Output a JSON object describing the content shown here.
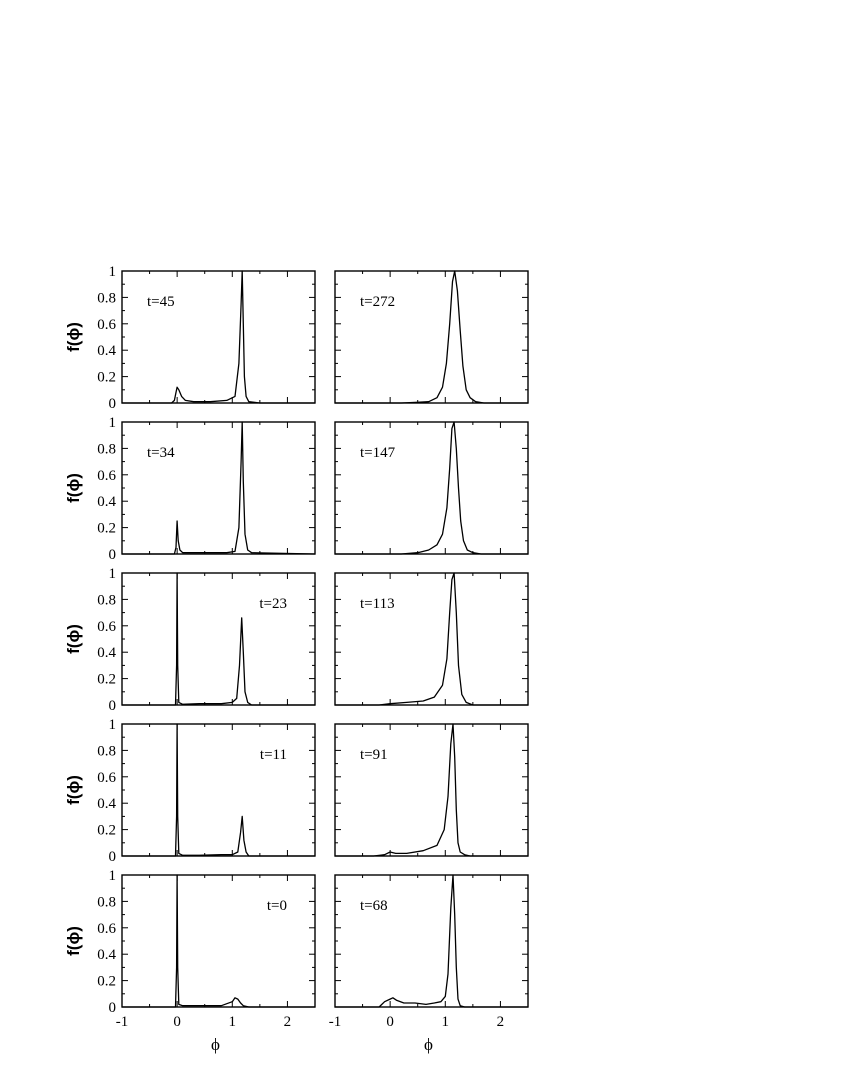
{
  "chart_data": [
    {
      "type": "line",
      "panel_label": "t=45",
      "ylabel": "f(ϕ)",
      "xlabel": "",
      "xlim": [
        -1,
        2.5
      ],
      "ylim": [
        0,
        1
      ],
      "x": [
        -1.0,
        -0.1,
        -0.05,
        -0.02,
        0.0,
        0.03,
        0.08,
        0.15,
        0.3,
        0.6,
        0.9,
        1.05,
        1.12,
        1.16,
        1.18,
        1.2,
        1.22,
        1.25,
        1.3,
        1.5,
        2.5
      ],
      "y": [
        0,
        0,
        0.02,
        0.08,
        0.12,
        0.1,
        0.05,
        0.02,
        0.01,
        0.01,
        0.02,
        0.05,
        0.3,
        0.75,
        1.0,
        0.6,
        0.2,
        0.05,
        0.01,
        0,
        0
      ]
    },
    {
      "type": "line",
      "panel_label": "t=272",
      "ylabel": "",
      "xlabel": "",
      "xlim": [
        -1,
        2.5
      ],
      "ylim": [
        0,
        1
      ],
      "x": [
        -1.0,
        0.2,
        0.5,
        0.7,
        0.85,
        0.95,
        1.02,
        1.08,
        1.13,
        1.17,
        1.22,
        1.27,
        1.32,
        1.38,
        1.45,
        1.55,
        1.7,
        2.5
      ],
      "y": [
        0,
        0,
        0.005,
        0.01,
        0.04,
        0.12,
        0.3,
        0.6,
        0.92,
        1.0,
        0.85,
        0.55,
        0.28,
        0.1,
        0.04,
        0.01,
        0,
        0
      ]
    },
    {
      "type": "line",
      "panel_label": "t=34",
      "ylabel": "f(ϕ)",
      "xlabel": "",
      "xlim": [
        -1,
        2.5
      ],
      "ylim": [
        0,
        1
      ],
      "x": [
        -1.0,
        -0.05,
        -0.02,
        0.0,
        0.02,
        0.05,
        0.1,
        0.3,
        0.6,
        0.9,
        1.05,
        1.12,
        1.16,
        1.18,
        1.2,
        1.23,
        1.28,
        1.35,
        2.5
      ],
      "y": [
        0,
        0,
        0.05,
        0.25,
        0.1,
        0.03,
        0.01,
        0.01,
        0.01,
        0.01,
        0.02,
        0.2,
        0.7,
        1.0,
        0.55,
        0.15,
        0.03,
        0.01,
        0
      ]
    },
    {
      "type": "line",
      "panel_label": "t=147",
      "ylabel": "",
      "xlabel": "",
      "xlim": [
        -1,
        2.5
      ],
      "ylim": [
        0,
        1
      ],
      "x": [
        -1.0,
        0.2,
        0.5,
        0.7,
        0.85,
        0.95,
        1.03,
        1.08,
        1.12,
        1.16,
        1.2,
        1.24,
        1.28,
        1.33,
        1.4,
        1.5,
        1.65,
        2.5
      ],
      "y": [
        0,
        0,
        0.01,
        0.03,
        0.07,
        0.15,
        0.35,
        0.65,
        0.95,
        1.0,
        0.8,
        0.5,
        0.25,
        0.1,
        0.03,
        0.01,
        0,
        0
      ]
    },
    {
      "type": "line",
      "panel_label": "t=23",
      "ylabel": "f(ϕ)",
      "xlabel": "",
      "xlim": [
        -1,
        2.5
      ],
      "ylim": [
        0,
        1
      ],
      "x": [
        -1.0,
        -0.03,
        -0.01,
        0.0,
        0.01,
        0.03,
        0.1,
        0.4,
        0.8,
        1.0,
        1.08,
        1.13,
        1.17,
        1.2,
        1.23,
        1.28,
        1.35,
        2.5
      ],
      "y": [
        0,
        0,
        0.3,
        1.0,
        0.3,
        0.02,
        0.005,
        0.01,
        0.01,
        0.02,
        0.05,
        0.3,
        0.66,
        0.4,
        0.1,
        0.02,
        0,
        0
      ]
    },
    {
      "type": "line",
      "panel_label": "t=113",
      "ylabel": "",
      "xlabel": "",
      "xlim": [
        -1,
        2.5
      ],
      "ylim": [
        0,
        1
      ],
      "x": [
        -1.0,
        -0.2,
        0.0,
        0.3,
        0.6,
        0.8,
        0.95,
        1.03,
        1.08,
        1.12,
        1.16,
        1.2,
        1.24,
        1.3,
        1.38,
        1.5,
        2.5
      ],
      "y": [
        0,
        0,
        0.01,
        0.02,
        0.03,
        0.06,
        0.15,
        0.35,
        0.7,
        0.95,
        1.0,
        0.7,
        0.3,
        0.08,
        0.02,
        0,
        0
      ]
    },
    {
      "type": "line",
      "panel_label": "t=11",
      "ylabel": "f(ϕ)",
      "xlabel": "",
      "xlim": [
        -1,
        2.5
      ],
      "ylim": [
        0,
        1
      ],
      "x": [
        -1.0,
        -0.03,
        -0.01,
        0.0,
        0.01,
        0.03,
        0.1,
        0.4,
        0.8,
        1.0,
        1.1,
        1.15,
        1.18,
        1.21,
        1.25,
        1.3,
        2.5
      ],
      "y": [
        0,
        0,
        0.3,
        1.0,
        0.3,
        0.02,
        0.005,
        0.005,
        0.01,
        0.01,
        0.03,
        0.18,
        0.3,
        0.12,
        0.03,
        0,
        0
      ]
    },
    {
      "type": "line",
      "panel_label": "t=91",
      "ylabel": "",
      "xlabel": "",
      "xlim": [
        -1,
        2.5
      ],
      "ylim": [
        0,
        1
      ],
      "x": [
        -1.0,
        -0.3,
        -0.1,
        0.0,
        0.1,
        0.3,
        0.6,
        0.85,
        0.98,
        1.05,
        1.1,
        1.14,
        1.17,
        1.2,
        1.23,
        1.27,
        1.35,
        1.45,
        2.5
      ],
      "y": [
        0,
        0,
        0.01,
        0.03,
        0.02,
        0.02,
        0.04,
        0.08,
        0.2,
        0.45,
        0.85,
        1.0,
        0.75,
        0.35,
        0.1,
        0.03,
        0.01,
        0,
        0
      ]
    },
    {
      "type": "line",
      "panel_label": "t=0",
      "ylabel": "f(ϕ)",
      "xlabel": "ϕ",
      "xlim": [
        -1,
        2.5
      ],
      "ylim": [
        0,
        1
      ],
      "x": [
        -1.0,
        -0.03,
        -0.01,
        0.0,
        0.01,
        0.03,
        0.1,
        0.4,
        0.8,
        1.0,
        1.05,
        1.1,
        1.15,
        1.2,
        1.3,
        2.5
      ],
      "y": [
        0,
        0,
        0.3,
        1.0,
        0.3,
        0.02,
        0.01,
        0.01,
        0.01,
        0.04,
        0.07,
        0.06,
        0.03,
        0.01,
        0,
        0
      ]
    },
    {
      "type": "line",
      "panel_label": "t=68",
      "ylabel": "",
      "xlabel": "ϕ",
      "xlim": [
        -1,
        2.5
      ],
      "ylim": [
        0,
        1
      ],
      "x": [
        -1.0,
        -0.2,
        -0.1,
        0.0,
        0.05,
        0.12,
        0.25,
        0.45,
        0.65,
        0.8,
        0.92,
        1.0,
        1.05,
        1.1,
        1.14,
        1.17,
        1.2,
        1.23,
        1.27,
        1.35,
        2.5
      ],
      "y": [
        0,
        0,
        0.04,
        0.06,
        0.07,
        0.05,
        0.03,
        0.03,
        0.02,
        0.03,
        0.04,
        0.08,
        0.25,
        0.75,
        1.0,
        0.7,
        0.3,
        0.06,
        0.01,
        0,
        0
      ]
    }
  ],
  "axis_ticks": {
    "x": [
      {
        "value": -1,
        "label": "-1"
      },
      {
        "value": 0,
        "label": "0"
      },
      {
        "value": 1,
        "label": "1"
      },
      {
        "value": 2,
        "label": "2"
      }
    ],
    "y": [
      {
        "value": 0,
        "label": "0"
      },
      {
        "value": 0.2,
        "label": "0.2"
      },
      {
        "value": 0.4,
        "label": "0.4"
      },
      {
        "value": 0.6,
        "label": "0.6"
      },
      {
        "value": 0.8,
        "label": "0.8"
      },
      {
        "value": 1,
        "label": "1"
      }
    ]
  }
}
